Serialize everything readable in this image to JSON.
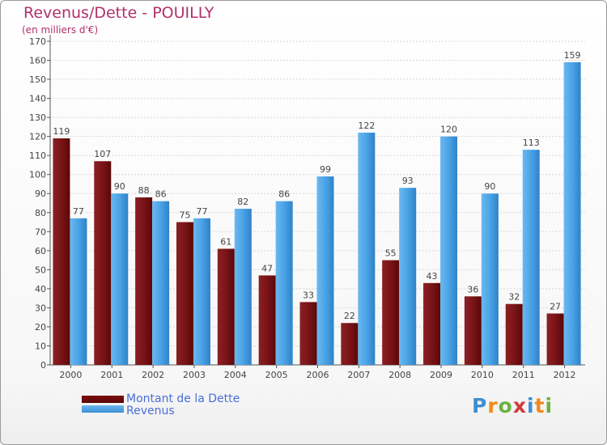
{
  "colors": {
    "debt": "#7a1418",
    "revenue": "#4aa3e6",
    "title": "#b0306a",
    "legend_text": "#4a6fd8"
  },
  "logo": {
    "text": "Proxiti",
    "letters": [
      "P",
      "r",
      "o",
      "x",
      "i",
      "t",
      "i"
    ],
    "colors": [
      "#3b8fd0",
      "#f08a1c",
      "#6cb33f",
      "#d23a3a",
      "#3b8fd0",
      "#f08a1c",
      "#6cb33f"
    ]
  },
  "chart_data": {
    "type": "bar",
    "title": "Revenus/Dette - POUILLY",
    "subtitle": "(en milliers d'€)",
    "xlabel": "",
    "ylabel": "",
    "ylim": [
      0,
      170
    ],
    "ytick_step": 10,
    "grid": true,
    "legend_position": "bottom-left",
    "categories": [
      "2000",
      "2001",
      "2002",
      "2003",
      "2004",
      "2005",
      "2006",
      "2007",
      "2008",
      "2009",
      "2010",
      "2011",
      "2012"
    ],
    "series": [
      {
        "name": "Montant de la Dette",
        "values": [
          119,
          107,
          88,
          75,
          61,
          47,
          33,
          22,
          55,
          43,
          36,
          32,
          27
        ]
      },
      {
        "name": "Revenus",
        "values": [
          77,
          90,
          86,
          77,
          82,
          86,
          99,
          122,
          93,
          120,
          90,
          113,
          159
        ]
      }
    ]
  }
}
